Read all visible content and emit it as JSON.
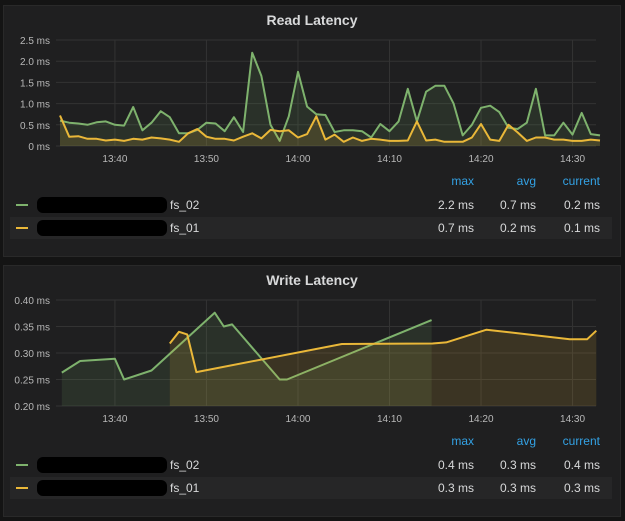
{
  "colors": {
    "series_02": "#7eb26d",
    "series_01": "#eab839",
    "header": "#33a2e5"
  },
  "legend_headers": {
    "max": "max",
    "avg": "avg",
    "current": "current"
  },
  "panels": [
    {
      "title": "Read Latency",
      "legend": [
        {
          "name": "fs_02",
          "max": "2.2 ms",
          "avg": "0.7 ms",
          "current": "0.2 ms"
        },
        {
          "name": "fs_01",
          "max": "0.7 ms",
          "avg": "0.2 ms",
          "current": "0.1 ms"
        }
      ]
    },
    {
      "title": "Write Latency",
      "legend": [
        {
          "name": "fs_02",
          "max": "0.4 ms",
          "avg": "0.3 ms",
          "current": "0.4 ms"
        },
        {
          "name": "fs_01",
          "max": "0.3 ms",
          "avg": "0.3 ms",
          "current": "0.3 ms"
        }
      ]
    }
  ],
  "chart_data": [
    {
      "type": "line",
      "title": "Read Latency",
      "ylabel": "ms",
      "ylim": [
        0,
        2.5
      ],
      "yticks": [
        "0 ms",
        "0.5 ms",
        "1.0 ms",
        "1.5 ms",
        "2.0 ms",
        "2.5 ms"
      ],
      "xticks": [
        "13:40",
        "13:50",
        "14:00",
        "14:10",
        "14:20",
        "14:30"
      ],
      "x_start_minute": 814,
      "x_step_min": 1,
      "series": [
        {
          "name": "fs_02",
          "values": [
            0.6,
            0.55,
            0.53,
            0.5,
            0.56,
            0.58,
            0.5,
            0.48,
            0.92,
            0.37,
            0.55,
            0.82,
            0.68,
            0.3,
            0.3,
            0.38,
            0.55,
            0.53,
            0.35,
            0.68,
            0.33,
            2.2,
            1.65,
            0.5,
            0.12,
            0.7,
            1.75,
            0.93,
            0.75,
            0.73,
            0.33,
            0.37,
            0.37,
            0.35,
            0.2,
            0.52,
            0.35,
            0.58,
            1.35,
            0.58,
            1.28,
            1.42,
            1.42,
            1.0,
            0.25,
            0.5,
            0.9,
            0.95,
            0.8,
            0.43,
            0.4,
            0.55,
            1.35,
            0.25,
            0.25,
            0.55,
            0.27,
            0.78,
            0.28,
            0.25
          ]
        },
        {
          "name": "fs_01",
          "values": [
            0.72,
            0.22,
            0.23,
            0.17,
            0.17,
            0.13,
            0.15,
            0.12,
            0.17,
            0.15,
            0.2,
            0.18,
            0.15,
            0.1,
            0.3,
            0.4,
            0.22,
            0.17,
            0.17,
            0.13,
            0.22,
            0.3,
            0.18,
            0.38,
            0.35,
            0.37,
            0.2,
            0.28,
            0.7,
            0.15,
            0.27,
            0.1,
            0.2,
            0.12,
            0.17,
            0.15,
            0.12,
            0.12,
            0.13,
            0.58,
            0.13,
            0.15,
            0.1,
            0.1,
            0.1,
            0.2,
            0.52,
            0.15,
            0.12,
            0.5,
            0.32,
            0.12,
            0.2,
            0.2,
            0.15,
            0.15,
            0.12,
            0.12,
            0.15,
            0.13
          ]
        }
      ]
    },
    {
      "type": "line",
      "title": "Write Latency",
      "ylabel": "ms",
      "ylim": [
        0.2,
        0.4
      ],
      "yticks": [
        "0.20 ms",
        "0.25 ms",
        "0.30 ms",
        "0.35 ms",
        "0.40 ms"
      ],
      "xticks": [
        "13:40",
        "13:50",
        "14:00",
        "14:10",
        "14:20",
        "14:30"
      ],
      "series": [
        {
          "name": "fs_02",
          "points": [
            [
              814.2,
              0.263
            ],
            [
              816.2,
              0.285
            ],
            [
              820,
              0.289
            ],
            [
              821,
              0.25
            ],
            [
              824,
              0.267
            ],
            [
              830.9,
              0.376
            ],
            [
              831.9,
              0.35
            ],
            [
              832.8,
              0.354
            ],
            [
              838,
              0.25
            ],
            [
              838.8,
              0.25
            ],
            [
              854.6,
              0.362
            ]
          ]
        },
        {
          "name": "fs_01",
          "points": [
            [
              826,
              0.318
            ],
            [
              827,
              0.34
            ],
            [
              827.9,
              0.335
            ],
            [
              828.9,
              0.264
            ],
            [
              844.8,
              0.317
            ],
            [
              854.7,
              0.318
            ],
            [
              856.2,
              0.32
            ],
            [
              860.6,
              0.344
            ],
            [
              869.7,
              0.326
            ],
            [
              871.6,
              0.326
            ],
            [
              872.6,
              0.342
            ]
          ]
        }
      ]
    }
  ]
}
